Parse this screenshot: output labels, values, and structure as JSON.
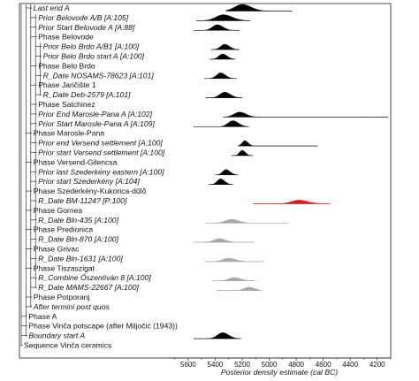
{
  "chart_data": {
    "type": "area",
    "xlabel": "Posterior density estimate (cal BC)",
    "xlim": [
      5750,
      4100
    ],
    "x_ticks": [
      5600,
      5400,
      5200,
      5000,
      4800,
      4600,
      4400,
      4200
    ],
    "grid": false,
    "rows": [
      {
        "label": "Last end A",
        "italic": true,
        "depth": 2,
        "kind": "prior",
        "peak": 5200,
        "spread": 55,
        "range": [
          5320,
          4830
        ],
        "color": "#000000",
        "amp": 1.0
      },
      {
        "label": "Prior Belovode A/B [A:105]",
        "italic": true,
        "depth": 3,
        "kind": "posterior",
        "peak": 5340,
        "spread": 55,
        "range": [
          5540,
          5140
        ],
        "color": "#000000",
        "amp": 0.9
      },
      {
        "label": "Prior Start Belovode A [A:88]",
        "italic": true,
        "depth": 3,
        "kind": "posterior",
        "peak": 5385,
        "spread": 35,
        "range": [
          5560,
          5220
        ],
        "color": "#000000",
        "amp": 0.85
      },
      {
        "label": "Phase Belovode",
        "italic": false,
        "depth": 3,
        "kind": "phase"
      },
      {
        "label": "Prior Belo Brdo A/B1 [A:100]",
        "italic": true,
        "depth": 4,
        "kind": "posterior",
        "peak": 5330,
        "spread": 30,
        "range": [
          5430,
          5220
        ],
        "color": "#000000",
        "amp": 0.8
      },
      {
        "label": "Prior Belo Brdo start A [A:100]",
        "italic": true,
        "depth": 4,
        "kind": "posterior",
        "peak": 5345,
        "spread": 28,
        "range": [
          5440,
          5250
        ],
        "color": "#000000",
        "amp": 0.8
      },
      {
        "label": "Phase Belo Brdo",
        "italic": false,
        "depth": 3,
        "kind": "phase"
      },
      {
        "label": "R_Date NOSAMS-78623 [A:101]",
        "italic": true,
        "depth": 4,
        "kind": "date",
        "peak": 5360,
        "spread": 30,
        "range": [
          5480,
          5240
        ],
        "color": "#000000",
        "amp": 0.85
      },
      {
        "label": "Phase Jaričište 1",
        "italic": false,
        "depth": 3,
        "kind": "phase"
      },
      {
        "label": "R_Date Deb-2579 [A:101]",
        "italic": true,
        "depth": 4,
        "kind": "date",
        "peak": 5330,
        "spread": 35,
        "range": [
          5470,
          5200
        ],
        "color": "#000000",
        "amp": 0.85
      },
      {
        "label": "Phase Satchinez",
        "italic": false,
        "depth": 3,
        "kind": "phase"
      },
      {
        "label": "Prior End Marosle-Pana A [A:102]",
        "italic": true,
        "depth": 3,
        "kind": "prior",
        "peak": 5220,
        "spread": 40,
        "range": [
          5340,
          4120
        ],
        "color": "#000000",
        "amp": 0.75
      },
      {
        "label": "Prior Start Marosle-Pana A [A:109]",
        "italic": true,
        "depth": 3,
        "kind": "prior",
        "peak": 5270,
        "spread": 35,
        "range": [
          5560,
          5150
        ],
        "color": "#000000",
        "amp": 0.9
      },
      {
        "label": "Phase Marosle-Pana",
        "italic": false,
        "depth": 2,
        "kind": "phase"
      },
      {
        "label": "Prior end Versend settlement [A:100]",
        "italic": true,
        "depth": 3,
        "kind": "prior",
        "peak": 5180,
        "spread": 20,
        "range": [
          5230,
          4640
        ],
        "color": "#000000",
        "amp": 0.8
      },
      {
        "label": "Prior start Versend settlement [A:100]",
        "italic": true,
        "depth": 3,
        "kind": "prior",
        "peak": 5200,
        "spread": 20,
        "range": [
          5280,
          5120
        ],
        "color": "#000000",
        "amp": 0.8
      },
      {
        "label": "Phase Versend-Gilencsa",
        "italic": false,
        "depth": 2,
        "kind": "phase"
      },
      {
        "label": "Prior last Szederkény eastern [A:100]",
        "italic": true,
        "depth": 3,
        "kind": "prior",
        "peak": 5320,
        "spread": 25,
        "range": [
          5400,
          5230
        ],
        "color": "#000000",
        "amp": 0.8
      },
      {
        "label": "Prior start Szederkény [A:104]",
        "italic": true,
        "depth": 3,
        "kind": "prior",
        "peak": 5360,
        "spread": 25,
        "range": [
          5450,
          5270
        ],
        "color": "#000000",
        "amp": 0.85
      },
      {
        "label": "Phase Szederkény-Kukorica-dűlő",
        "italic": false,
        "depth": 2,
        "kind": "phase"
      },
      {
        "label": "R_Date BM-1124? [P:100]",
        "italic": true,
        "depth": 3,
        "kind": "outlier",
        "peak": 4780,
        "spread": 55,
        "range": [
          5120,
          4550
        ],
        "color": "#d62020",
        "amp": 0.55
      },
      {
        "label": "Phase Gornea",
        "italic": false,
        "depth": 2,
        "kind": "phase"
      },
      {
        "label": "R_Date Bln-435 [A:100]",
        "italic": true,
        "depth": 3,
        "kind": "date",
        "peak": 5280,
        "spread": 45,
        "range": [
          5470,
          4860
        ],
        "color": "#a8a8a8",
        "amp": 0.55
      },
      {
        "label": "Phase Predionica",
        "italic": false,
        "depth": 2,
        "kind": "phase"
      },
      {
        "label": "R_Date Bln-870 [A:100]",
        "italic": true,
        "depth": 3,
        "kind": "date",
        "peak": 5370,
        "spread": 40,
        "range": [
          5560,
          5110
        ],
        "color": "#a8a8a8",
        "amp": 0.55
      },
      {
        "label": "Phase Grivac",
        "italic": false,
        "depth": 2,
        "kind": "phase"
      },
      {
        "label": "R_Date Bln-1631 [A:100]",
        "italic": true,
        "depth": 3,
        "kind": "date",
        "peak": 5300,
        "spread": 45,
        "range": [
          5480,
          5040
        ],
        "color": "#a8a8a8",
        "amp": 0.5
      },
      {
        "label": "Phase Tiszaszigat",
        "italic": false,
        "depth": 2,
        "kind": "phase"
      },
      {
        "label": "R_Combine Őszentiván 8 [A:100]",
        "italic": true,
        "depth": 3,
        "kind": "date",
        "peak": 5260,
        "spread": 40,
        "range": [
          5420,
          5100
        ],
        "color": "#a8a8a8",
        "amp": 0.5
      },
      {
        "label": "R_Date MAMS-22667 [A:100]",
        "italic": true,
        "depth": 3,
        "kind": "date",
        "peak": 5150,
        "spread": 35,
        "range": [
          5390,
          5060
        ],
        "color": "#a8a8a8",
        "amp": 0.5
      },
      {
        "label": "Phase Potporanj",
        "italic": false,
        "depth": 2,
        "kind": "phase"
      },
      {
        "label": "After termini post quos",
        "italic": true,
        "depth": 2,
        "kind": "phase"
      },
      {
        "label": "Phase A",
        "italic": false,
        "depth": 1,
        "kind": "phase"
      },
      {
        "label": "Phase Vinča potscape (after Miljočić (1943))",
        "italic": false,
        "depth": 1,
        "kind": "phase"
      },
      {
        "label": "Boundary start A",
        "italic": true,
        "depth": 1,
        "kind": "prior",
        "peak": 5345,
        "spread": 38,
        "range": [
          5560,
          5210
        ],
        "color": "#000000",
        "amp": 0.9
      },
      {
        "label": "Sequence Vinča ceramics",
        "italic": false,
        "depth": 0,
        "kind": "phase"
      }
    ]
  }
}
